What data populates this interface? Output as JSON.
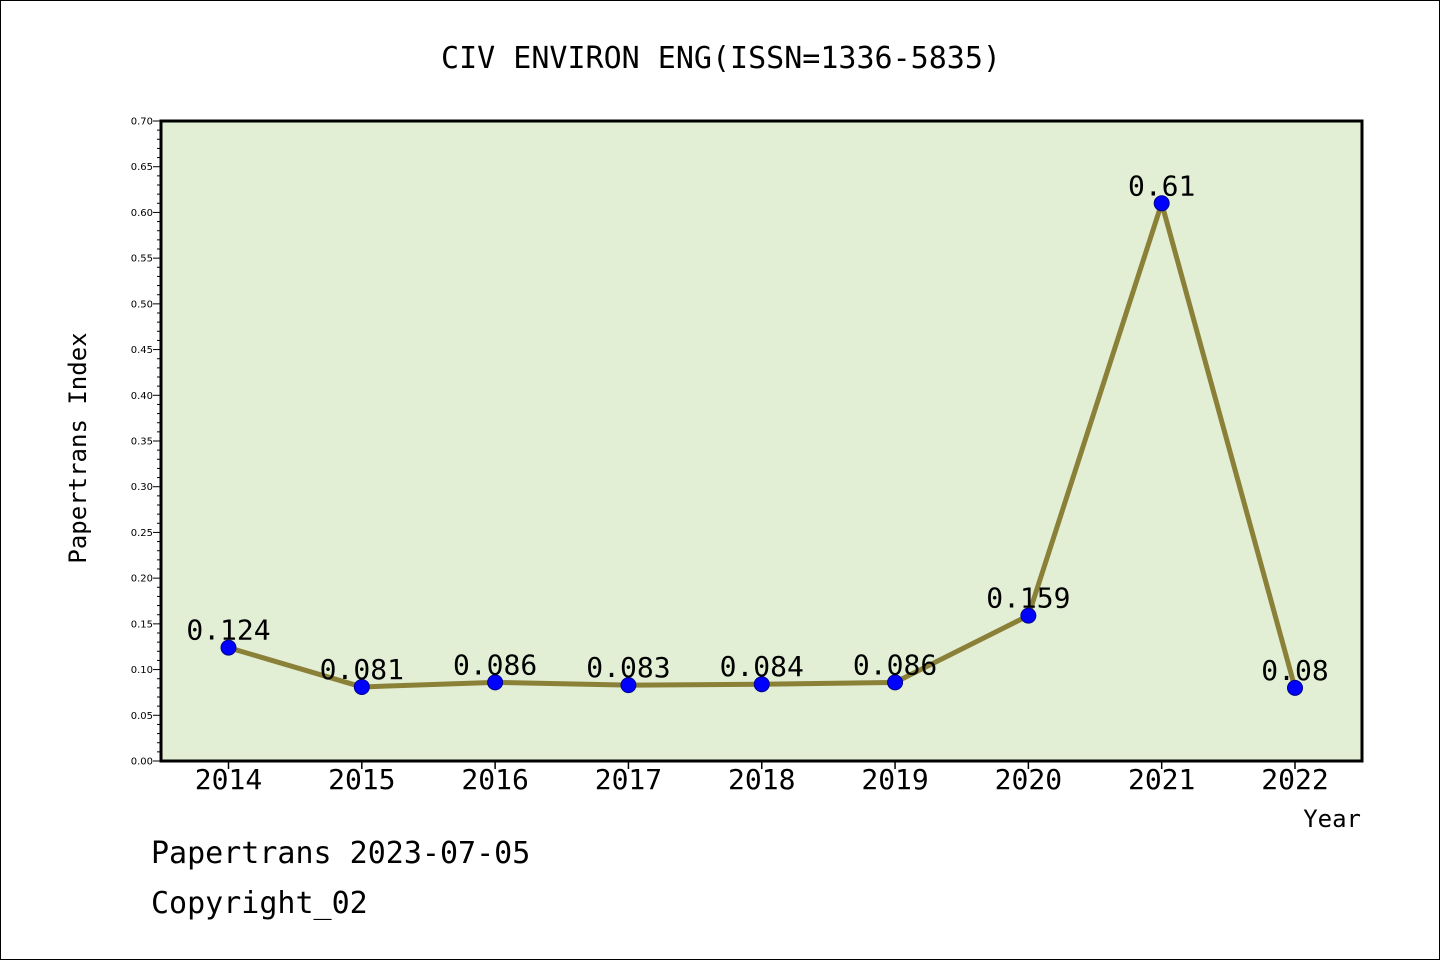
{
  "chart_data": {
    "type": "line",
    "title": "CIV ENVIRON ENG(ISSN=1336-5835)",
    "xlabel": "Year",
    "ylabel": "Papertrans Index",
    "categories": [
      "2014",
      "2015",
      "2016",
      "2017",
      "2018",
      "2019",
      "2020",
      "2021",
      "2022"
    ],
    "values": [
      0.124,
      0.081,
      0.086,
      0.083,
      0.084,
      0.086,
      0.159,
      0.61,
      0.08
    ],
    "data_labels": [
      "0.124",
      "0.081",
      "0.086",
      "0.083",
      "0.084",
      "0.086",
      "0.159",
      "0.61",
      "0.08"
    ],
    "ylim": [
      0,
      0.7
    ],
    "yticks": [
      "0.00",
      "0.05",
      "0.10",
      "0.15",
      "0.20",
      "0.25",
      "0.30",
      "0.35",
      "0.40",
      "0.45",
      "0.50",
      "0.55",
      "0.60",
      "0.65",
      "0.70"
    ],
    "grid": false,
    "colors": {
      "plot_background": "#e2efd5",
      "line": "#8b8038",
      "marker": "#0000ff"
    }
  },
  "footer": {
    "line1": "Papertrans 2023-07-05",
    "line2": "Copyright_02"
  }
}
